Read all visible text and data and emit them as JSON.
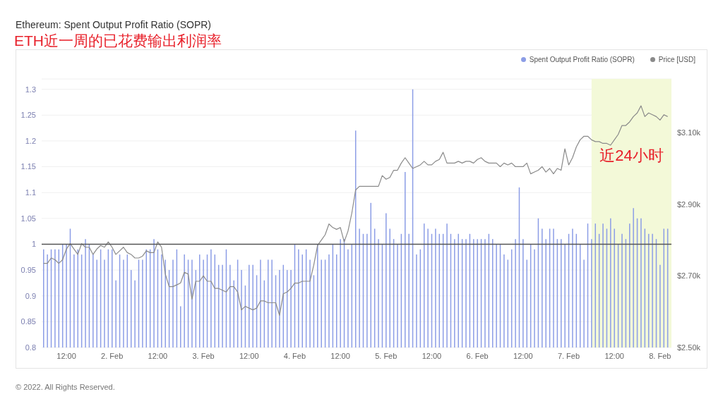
{
  "chart_data": {
    "type": "bar",
    "title": "Ethereum: Spent Output Profit Ratio (SOPR)",
    "subtitle": "ETH近一周的已花费输出利润率",
    "annotations": [
      "© 2022. All Rights Reserved."
    ],
    "x": [
      "2022-02-01T06:00",
      "2022-02-01T07:00",
      "2022-02-01T08:00",
      "2022-02-01T09:00",
      "2022-02-01T10:00",
      "2022-02-01T11:00",
      "2022-02-01T12:00",
      "2022-02-01T13:00",
      "2022-02-01T14:00",
      "2022-02-01T15:00",
      "2022-02-01T16:00",
      "2022-02-01T17:00",
      "2022-02-01T18:00",
      "2022-02-01T19:00",
      "2022-02-01T20:00",
      "2022-02-01T21:00",
      "2022-02-01T22:00",
      "2022-02-01T23:00",
      "2022-02-02T00:00",
      "2022-02-02T01:00",
      "2022-02-02T02:00",
      "2022-02-02T03:00",
      "2022-02-02T04:00",
      "2022-02-02T05:00",
      "2022-02-02T06:00",
      "2022-02-02T07:00",
      "2022-02-02T08:00",
      "2022-02-02T09:00",
      "2022-02-02T10:00",
      "2022-02-02T11:00",
      "2022-02-02T12:00",
      "2022-02-02T13:00",
      "2022-02-02T14:00",
      "2022-02-02T15:00",
      "2022-02-02T16:00",
      "2022-02-02T17:00",
      "2022-02-02T18:00",
      "2022-02-02T19:00",
      "2022-02-02T20:00",
      "2022-02-02T21:00",
      "2022-02-02T22:00",
      "2022-02-02T23:00",
      "2022-02-03T00:00",
      "2022-02-03T01:00",
      "2022-02-03T02:00",
      "2022-02-03T03:00",
      "2022-02-03T04:00",
      "2022-02-03T05:00",
      "2022-02-03T06:00",
      "2022-02-03T07:00",
      "2022-02-03T08:00",
      "2022-02-03T09:00",
      "2022-02-03T10:00",
      "2022-02-03T11:00",
      "2022-02-03T12:00",
      "2022-02-03T13:00",
      "2022-02-03T14:00",
      "2022-02-03T15:00",
      "2022-02-03T16:00",
      "2022-02-03T17:00",
      "2022-02-03T18:00",
      "2022-02-03T19:00",
      "2022-02-03T20:00",
      "2022-02-03T21:00",
      "2022-02-03T22:00",
      "2022-02-03T23:00",
      "2022-02-04T00:00",
      "2022-02-04T01:00",
      "2022-02-04T02:00",
      "2022-02-04T03:00",
      "2022-02-04T04:00",
      "2022-02-04T05:00",
      "2022-02-04T06:00",
      "2022-02-04T07:00",
      "2022-02-04T08:00",
      "2022-02-04T09:00",
      "2022-02-04T10:00",
      "2022-02-04T11:00",
      "2022-02-04T12:00",
      "2022-02-04T13:00",
      "2022-02-04T14:00",
      "2022-02-04T15:00",
      "2022-02-04T16:00",
      "2022-02-04T17:00",
      "2022-02-04T18:00",
      "2022-02-04T19:00",
      "2022-02-04T20:00",
      "2022-02-04T21:00",
      "2022-02-04T22:00",
      "2022-02-04T23:00",
      "2022-02-05T00:00",
      "2022-02-05T01:00",
      "2022-02-05T02:00",
      "2022-02-05T03:00",
      "2022-02-05T04:00",
      "2022-02-05T05:00",
      "2022-02-05T06:00",
      "2022-02-05T07:00",
      "2022-02-05T08:00",
      "2022-02-05T09:00",
      "2022-02-05T10:00",
      "2022-02-05T11:00",
      "2022-02-05T12:00",
      "2022-02-05T13:00",
      "2022-02-05T14:00",
      "2022-02-05T15:00",
      "2022-02-05T16:00",
      "2022-02-05T17:00",
      "2022-02-05T18:00",
      "2022-02-05T19:00",
      "2022-02-05T20:00",
      "2022-02-05T21:00",
      "2022-02-05T22:00",
      "2022-02-05T23:00",
      "2022-02-06T00:00",
      "2022-02-06T01:00",
      "2022-02-06T02:00",
      "2022-02-06T03:00",
      "2022-02-06T04:00",
      "2022-02-06T05:00",
      "2022-02-06T06:00",
      "2022-02-06T07:00",
      "2022-02-06T08:00",
      "2022-02-06T09:00",
      "2022-02-06T10:00",
      "2022-02-06T11:00",
      "2022-02-06T12:00",
      "2022-02-06T13:00",
      "2022-02-06T14:00",
      "2022-02-06T15:00",
      "2022-02-06T16:00",
      "2022-02-06T17:00",
      "2022-02-06T18:00",
      "2022-02-06T19:00",
      "2022-02-06T20:00",
      "2022-02-06T21:00",
      "2022-02-06T22:00",
      "2022-02-06T23:00",
      "2022-02-07T00:00",
      "2022-02-07T01:00",
      "2022-02-07T02:00",
      "2022-02-07T03:00",
      "2022-02-07T04:00",
      "2022-02-07T05:00",
      "2022-02-07T06:00",
      "2022-02-07T07:00",
      "2022-02-07T08:00",
      "2022-02-07T09:00",
      "2022-02-07T10:00",
      "2022-02-07T11:00",
      "2022-02-07T12:00",
      "2022-02-07T13:00",
      "2022-02-07T14:00",
      "2022-02-07T15:00",
      "2022-02-07T16:00",
      "2022-02-07T17:00",
      "2022-02-07T18:00",
      "2022-02-07T19:00",
      "2022-02-07T20:00",
      "2022-02-07T21:00",
      "2022-02-07T22:00",
      "2022-02-07T23:00",
      "2022-02-08T00:00",
      "2022-02-08T01:00",
      "2022-02-08T02:00"
    ],
    "series": [
      {
        "name": "Spent Output Profit Ratio (SOPR)",
        "color": "#8c9de6",
        "values": [
          0.99,
          0.98,
          0.99,
          0.99,
          0.99,
          1.0,
          1.0,
          1.03,
          0.98,
          0.99,
          0.98,
          1.01,
          1.0,
          0.98,
          0.97,
          0.99,
          0.97,
          0.99,
          0.99,
          0.93,
          0.98,
          0.97,
          0.98,
          0.95,
          0.93,
          0.97,
          0.97,
          0.99,
          0.99,
          1.01,
          0.99,
          0.98,
          0.97,
          0.95,
          0.97,
          0.99,
          0.88,
          0.98,
          0.97,
          0.97,
          0.95,
          0.98,
          0.97,
          0.98,
          0.99,
          0.98,
          0.96,
          0.96,
          0.99,
          0.96,
          0.93,
          0.97,
          0.95,
          0.92,
          0.96,
          0.96,
          0.94,
          0.97,
          0.93,
          0.97,
          0.97,
          0.94,
          0.95,
          0.96,
          0.95,
          0.95,
          1.0,
          0.99,
          0.98,
          0.99,
          0.97,
          0.94,
          1.0,
          0.97,
          0.97,
          0.98,
          1.0,
          0.98,
          1.01,
          1.01,
          0.99,
          1.0,
          1.22,
          1.03,
          1.02,
          1.02,
          1.08,
          1.03,
          1.01,
          1.0,
          1.06,
          1.03,
          1.01,
          1.0,
          1.02,
          1.14,
          1.02,
          1.3,
          0.98,
          0.99,
          1.04,
          1.03,
          1.02,
          1.03,
          1.02,
          1.02,
          1.04,
          1.02,
          1.01,
          1.02,
          1.01,
          1.01,
          1.02,
          1.01,
          1.01,
          1.01,
          1.01,
          1.02,
          1.01,
          1.0,
          1.0,
          0.98,
          0.97,
          0.99,
          1.01,
          1.11,
          1.01,
          0.97,
          1.0,
          0.99,
          1.05,
          1.03,
          1.01,
          1.03,
          1.03,
          1.01,
          1.01,
          1.0,
          1.02,
          1.03,
          1.02,
          1.0,
          0.97,
          1.04,
          1.01,
          1.04,
          1.02,
          1.04,
          1.03,
          1.05,
          1.03,
          1.0,
          1.02,
          1.01,
          1.04,
          1.07,
          1.05,
          1.05,
          1.03,
          1.02,
          1.02,
          1.01,
          0.96,
          1.03,
          1.03
        ]
      },
      {
        "name": "Price [USD]",
        "type": "line",
        "axis": "y2",
        "color": "#8a8a8a",
        "values": [
          2735,
          2735,
          2750,
          2745,
          2735,
          2745,
          2775,
          2790,
          2775,
          2760,
          2790,
          2780,
          2780,
          2760,
          2775,
          2785,
          2780,
          2795,
          2780,
          2760,
          2770,
          2780,
          2765,
          2760,
          2750,
          2750,
          2755,
          2770,
          2765,
          2765,
          2795,
          2780,
          2705,
          2670,
          2670,
          2675,
          2680,
          2710,
          2705,
          2635,
          2685,
          2685,
          2700,
          2685,
          2685,
          2665,
          2665,
          2660,
          2655,
          2670,
          2670,
          2655,
          2605,
          2615,
          2610,
          2605,
          2610,
          2630,
          2630,
          2625,
          2625,
          2625,
          2590,
          2650,
          2655,
          2665,
          2680,
          2680,
          2685,
          2685,
          2685,
          2730,
          2785,
          2800,
          2815,
          2845,
          2835,
          2830,
          2835,
          2795,
          2825,
          2875,
          2940,
          2950,
          2950,
          2950,
          2950,
          2950,
          2950,
          2980,
          2970,
          2975,
          2995,
          2995,
          3015,
          3030,
          3015,
          3000,
          3005,
          3010,
          3020,
          3010,
          3010,
          3020,
          3025,
          3045,
          3015,
          3015,
          3015,
          3020,
          3015,
          3020,
          3020,
          3015,
          3025,
          3030,
          3020,
          3015,
          3015,
          3015,
          3005,
          3015,
          3010,
          3015,
          3005,
          3005,
          3005,
          3015,
          2985,
          2990,
          2995,
          3005,
          2990,
          3000,
          2985,
          3000,
          2995,
          3055,
          3010,
          3030,
          3060,
          3080,
          3090,
          3090,
          3080,
          3075,
          3075,
          3070,
          3070,
          3065,
          3080,
          3095,
          3120,
          3120,
          3130,
          3145,
          3155,
          3175,
          3145,
          3155,
          3150,
          3145,
          3135,
          3150,
          3145
        ]
      }
    ],
    "xlim": [
      "2022-02-01T05:30",
      "2022-02-08T03:00"
    ],
    "xticks": [
      {
        "value": "2022-02-01T12:00",
        "label": "12:00"
      },
      {
        "value": "2022-02-02",
        "label": "2. Feb"
      },
      {
        "value": "2022-02-02T12:00",
        "label": "12:00"
      },
      {
        "value": "2022-02-03",
        "label": "3. Feb"
      },
      {
        "value": "2022-02-03T12:00",
        "label": "12:00"
      },
      {
        "value": "2022-02-04",
        "label": "4. Feb"
      },
      {
        "value": "2022-02-04T12:00",
        "label": "12:00"
      },
      {
        "value": "2022-02-05",
        "label": "5. Feb"
      },
      {
        "value": "2022-02-05T12:00",
        "label": "12:00"
      },
      {
        "value": "2022-02-06",
        "label": "6. Feb"
      },
      {
        "value": "2022-02-06T12:00",
        "label": "12:00"
      },
      {
        "value": "2022-02-07",
        "label": "7. Feb"
      },
      {
        "value": "2022-02-07T12:00",
        "label": "12:00"
      },
      {
        "value": "2022-02-08",
        "label": "8. Feb"
      }
    ],
    "ylim": [
      0.8,
      1.32
    ],
    "yticks": [
      0.8,
      0.85,
      0.9,
      0.95,
      1,
      1.05,
      1.1,
      1.15,
      1.2,
      1.25,
      1.3
    ],
    "y2lim": [
      2500,
      3250
    ],
    "y2ticks": [
      {
        "value": 2500,
        "label": "$2.50k"
      },
      {
        "value": 2700,
        "label": "$2.70k"
      },
      {
        "value": 2900,
        "label": "$2.90k"
      },
      {
        "value": 3100,
        "label": "$3.10k"
      }
    ],
    "ref_lines": [
      {
        "axis": "y",
        "value": 1,
        "color": "#555555"
      }
    ],
    "bands": [
      {
        "axis": "x",
        "from": "2022-02-07T06:00",
        "to": "2022-02-08T03:00",
        "label": "近24小时",
        "color": "#f3f9d8"
      }
    ],
    "grid": "y",
    "legend": "top right",
    "marker": "none",
    "line_style": "solid"
  }
}
